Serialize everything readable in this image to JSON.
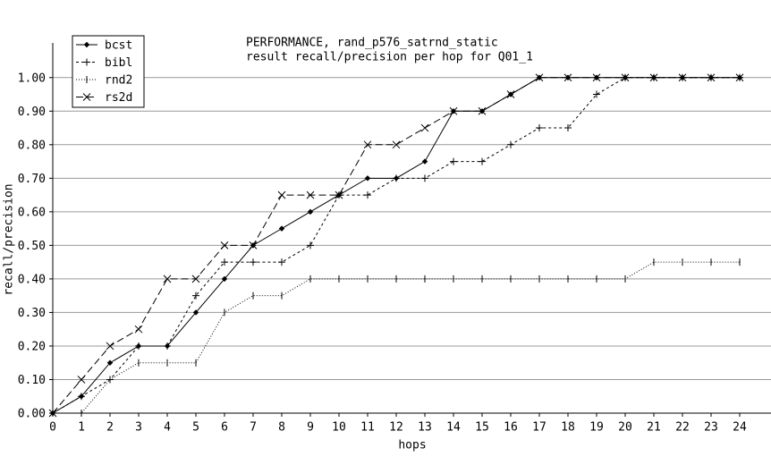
{
  "chart_data": {
    "type": "line",
    "title": [
      "PERFORMANCE, rand_p576_satrnd_static",
      "result recall/precision per hop for Q01_1"
    ],
    "xlabel": "hops",
    "ylabel": "recall/precision",
    "x": [
      0,
      1,
      2,
      3,
      4,
      5,
      6,
      7,
      8,
      9,
      10,
      11,
      12,
      13,
      14,
      15,
      16,
      17,
      18,
      19,
      20,
      21,
      22,
      23,
      24
    ],
    "xlim": [
      0,
      25
    ],
    "xticks": [
      0,
      1,
      2,
      3,
      4,
      5,
      6,
      7,
      8,
      9,
      10,
      11,
      12,
      13,
      14,
      15,
      16,
      17,
      18,
      19,
      20,
      21,
      22,
      23,
      24
    ],
    "ylim": [
      0,
      1.05
    ],
    "yticks": [
      {
        "value": 0,
        "label": "0.00"
      },
      {
        "value": 0.1,
        "label": "0.10"
      },
      {
        "value": 0.2,
        "label": "0.20"
      },
      {
        "value": 0.3,
        "label": "0.30"
      },
      {
        "value": 0.4,
        "label": "0.40"
      },
      {
        "value": 0.5,
        "label": "0.50"
      },
      {
        "value": 0.6,
        "label": "0.60"
      },
      {
        "value": 0.7,
        "label": "0.70"
      },
      {
        "value": 0.8,
        "label": "0.80"
      },
      {
        "value": 0.9,
        "label": "0.90"
      },
      {
        "value": 1,
        "label": "1.00"
      }
    ],
    "grid": true,
    "legend": "upper left",
    "series": [
      {
        "name": "bcst",
        "color": "#000000",
        "dash": "none",
        "marker": "diamond",
        "values": [
          0,
          0.05,
          0.15,
          0.2,
          0.2,
          0.3,
          0.4,
          0.5,
          0.55,
          0.6,
          0.65,
          0.7,
          0.7,
          0.75,
          0.9,
          0.9,
          0.95,
          1,
          1,
          1,
          1,
          1,
          1,
          1,
          1
        ]
      },
      {
        "name": "bibl",
        "color": "#000000",
        "dash": "3 3",
        "marker": "plus",
        "values": [
          0,
          0.05,
          0.1,
          0.2,
          0.2,
          0.35,
          0.45,
          0.45,
          0.45,
          0.5,
          0.65,
          0.65,
          0.7,
          0.7,
          0.75,
          0.75,
          0.8,
          0.85,
          0.85,
          0.95,
          1,
          1,
          1,
          1,
          1
        ]
      },
      {
        "name": "rnd2",
        "color": "#000000",
        "dash": "1 2",
        "marker": "vbar",
        "values": [
          0,
          0,
          0.1,
          0.15,
          0.15,
          0.15,
          0.3,
          0.35,
          0.35,
          0.4,
          0.4,
          0.4,
          0.4,
          0.4,
          0.4,
          0.4,
          0.4,
          0.4,
          0.4,
          0.4,
          0.4,
          0.45,
          0.45,
          0.45,
          0.45
        ]
      },
      {
        "name": "rs2d",
        "color": "#000000",
        "dash": "8 4",
        "marker": "cross",
        "values": [
          0,
          0.1,
          0.2,
          0.25,
          0.4,
          0.4,
          0.5,
          0.5,
          0.65,
          0.65,
          0.65,
          0.8,
          0.8,
          0.85,
          0.9,
          0.9,
          0.95,
          1,
          1,
          1,
          1,
          1,
          1,
          1,
          1
        ]
      }
    ]
  }
}
